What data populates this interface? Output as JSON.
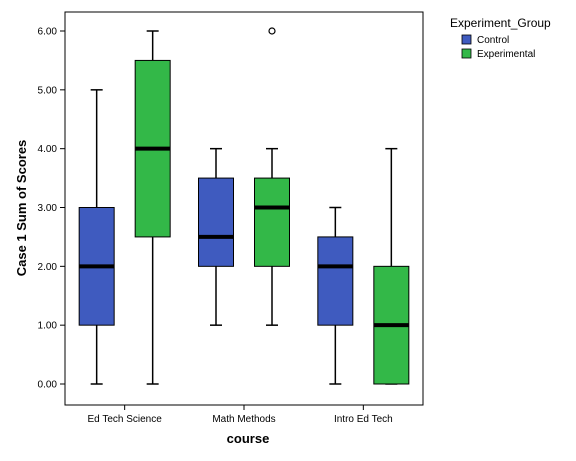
{
  "chart_data": {
    "type": "boxplot",
    "xlabel": "course",
    "ylabel": "Case 1 Sum of Scores",
    "ylim": [
      0,
      6
    ],
    "y_ticks": [
      "0.00",
      "1.00",
      "2.00",
      "3.00",
      "4.00",
      "5.00",
      "6.00"
    ],
    "categories": [
      "Ed Tech Science",
      "Math Methods",
      "Intro Ed Tech"
    ],
    "legend": {
      "title": "Experiment_Group",
      "position": "top-right",
      "entries": [
        "Control",
        "Experimental"
      ]
    },
    "series": [
      {
        "name": "Control",
        "color": "#3f5bbf",
        "boxes": [
          {
            "min": 0,
            "q1": 1,
            "median": 2,
            "q3": 3,
            "max": 5,
            "outliers": []
          },
          {
            "min": 1,
            "q1": 2,
            "median": 2.5,
            "q3": 3.5,
            "max": 4,
            "outliers": []
          },
          {
            "min": 0,
            "q1": 1,
            "median": 2,
            "q3": 2.5,
            "max": 3,
            "outliers": []
          }
        ]
      },
      {
        "name": "Experimental",
        "color": "#33b848",
        "boxes": [
          {
            "min": 0,
            "q1": 2.5,
            "median": 4,
            "q3": 5.5,
            "max": 6,
            "outliers": []
          },
          {
            "min": 1,
            "q1": 2,
            "median": 3,
            "q3": 3.5,
            "max": 4,
            "outliers": [
              6
            ]
          },
          {
            "min": 0,
            "q1": 0,
            "median": 1,
            "q3": 2,
            "max": 4,
            "outliers": []
          }
        ]
      }
    ]
  }
}
